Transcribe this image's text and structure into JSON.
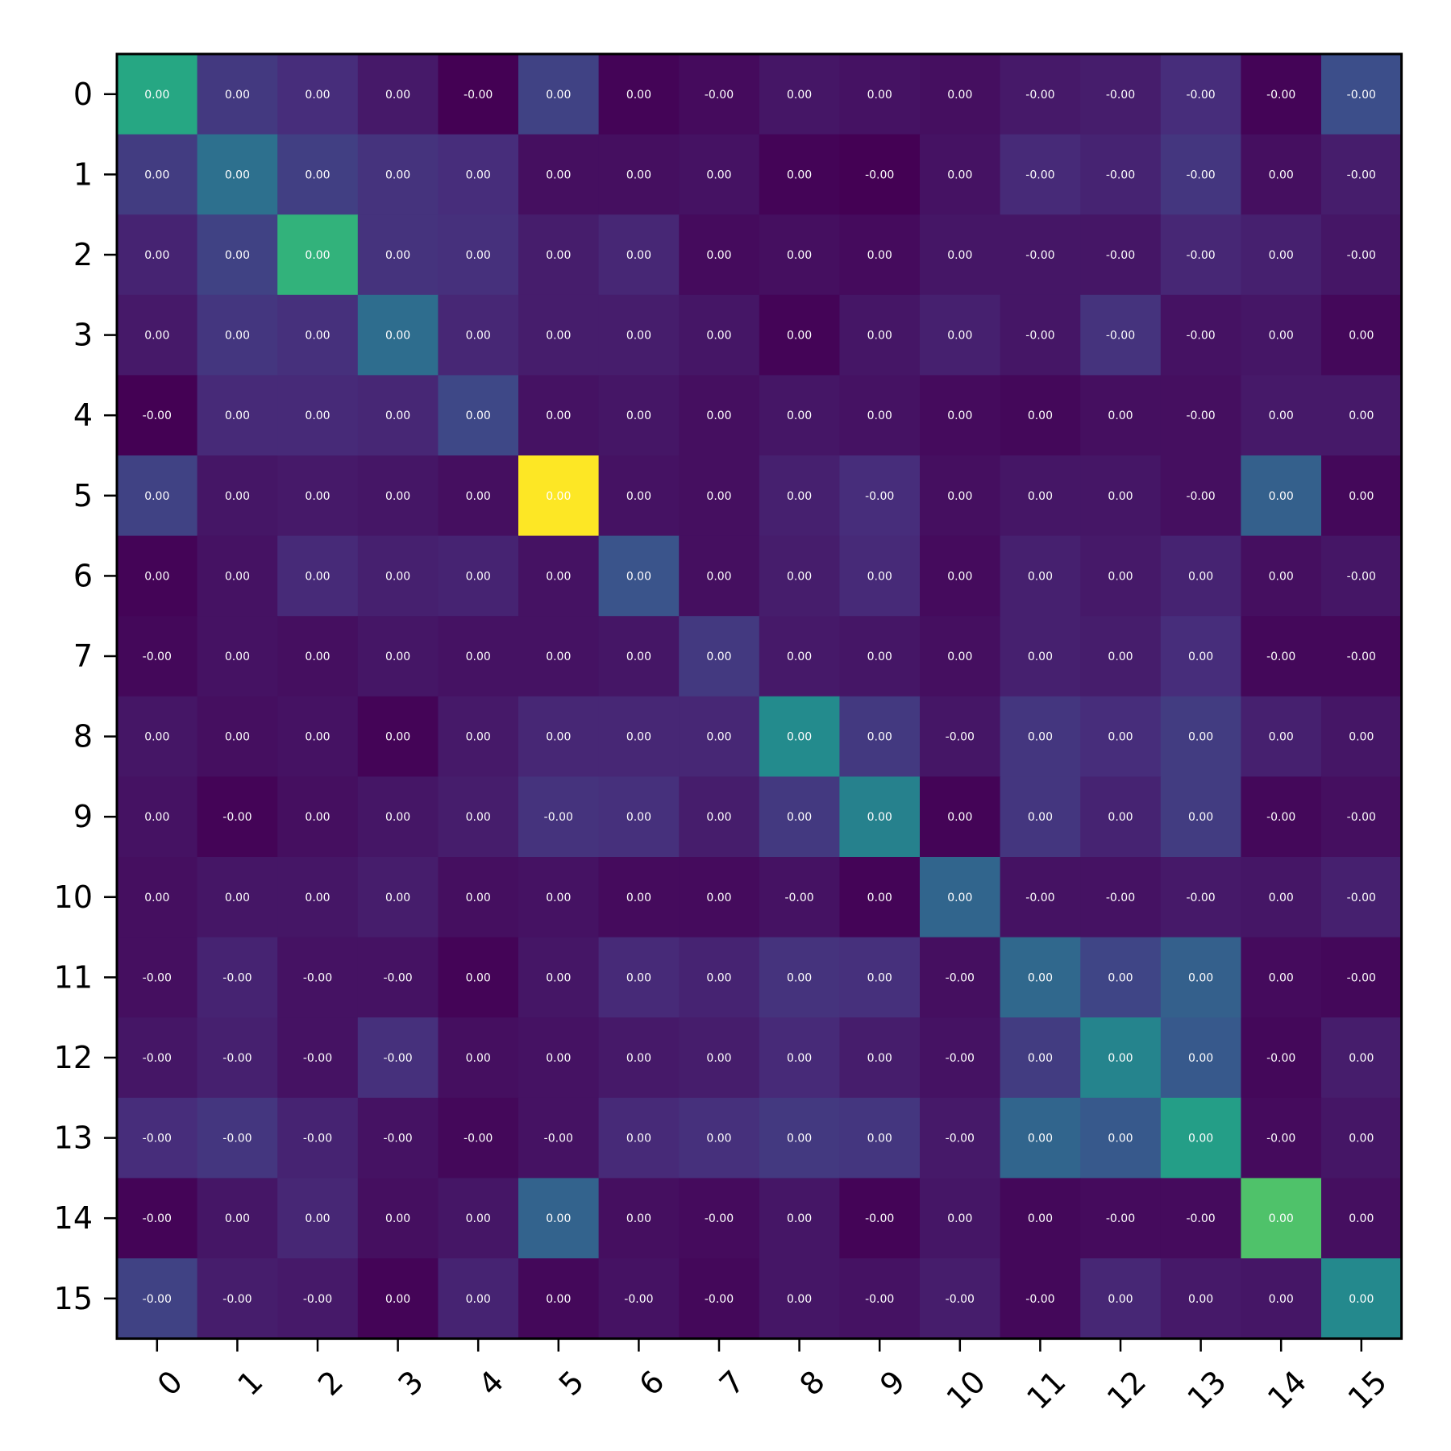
{
  "chart_data": {
    "type": "heatmap",
    "title": "",
    "xlabel": "",
    "ylabel": "",
    "x_categories": [
      "0",
      "1",
      "2",
      "3",
      "4",
      "5",
      "6",
      "7",
      "8",
      "9",
      "10",
      "11",
      "12",
      "13",
      "14",
      "15"
    ],
    "y_categories": [
      "0",
      "1",
      "2",
      "3",
      "4",
      "5",
      "6",
      "7",
      "8",
      "9",
      "10",
      "11",
      "12",
      "13",
      "14",
      "15"
    ],
    "colormap": "viridis",
    "grid": false,
    "legend": "none",
    "color_levels": [
      [
        0.6,
        0.17,
        0.13,
        0.07,
        0.0,
        0.2,
        0.01,
        0.03,
        0.06,
        0.05,
        0.04,
        0.07,
        0.08,
        0.13,
        0.01,
        0.24
      ],
      [
        0.18,
        0.37,
        0.19,
        0.15,
        0.13,
        0.04,
        0.04,
        0.05,
        0.01,
        0.0,
        0.05,
        0.12,
        0.1,
        0.16,
        0.04,
        0.08
      ],
      [
        0.1,
        0.2,
        0.65,
        0.15,
        0.14,
        0.08,
        0.11,
        0.03,
        0.04,
        0.03,
        0.06,
        0.06,
        0.06,
        0.11,
        0.09,
        0.06
      ],
      [
        0.07,
        0.16,
        0.14,
        0.36,
        0.11,
        0.08,
        0.08,
        0.06,
        0.01,
        0.06,
        0.09,
        0.06,
        0.15,
        0.05,
        0.06,
        0.02
      ],
      [
        0.0,
        0.12,
        0.12,
        0.11,
        0.22,
        0.05,
        0.06,
        0.04,
        0.06,
        0.05,
        0.03,
        0.02,
        0.04,
        0.04,
        0.07,
        0.07
      ],
      [
        0.2,
        0.06,
        0.07,
        0.06,
        0.04,
        1.0,
        0.05,
        0.04,
        0.09,
        0.13,
        0.04,
        0.06,
        0.06,
        0.04,
        0.31,
        0.02
      ],
      [
        0.01,
        0.05,
        0.12,
        0.09,
        0.1,
        0.05,
        0.26,
        0.04,
        0.08,
        0.12,
        0.03,
        0.09,
        0.07,
        0.1,
        0.04,
        0.06
      ],
      [
        0.02,
        0.05,
        0.04,
        0.06,
        0.05,
        0.05,
        0.06,
        0.17,
        0.07,
        0.06,
        0.04,
        0.09,
        0.08,
        0.13,
        0.02,
        0.02
      ],
      [
        0.06,
        0.04,
        0.05,
        0.01,
        0.07,
        0.11,
        0.11,
        0.11,
        0.48,
        0.17,
        0.06,
        0.16,
        0.13,
        0.18,
        0.09,
        0.06
      ],
      [
        0.05,
        0.01,
        0.04,
        0.06,
        0.08,
        0.15,
        0.14,
        0.08,
        0.17,
        0.44,
        0.01,
        0.16,
        0.1,
        0.18,
        0.02,
        0.04
      ],
      [
        0.04,
        0.06,
        0.06,
        0.08,
        0.04,
        0.05,
        0.03,
        0.03,
        0.05,
        0.01,
        0.33,
        0.05,
        0.05,
        0.07,
        0.06,
        0.09
      ],
      [
        0.04,
        0.1,
        0.05,
        0.05,
        0.01,
        0.06,
        0.12,
        0.1,
        0.15,
        0.14,
        0.04,
        0.34,
        0.21,
        0.31,
        0.03,
        0.02
      ],
      [
        0.06,
        0.09,
        0.05,
        0.14,
        0.04,
        0.05,
        0.07,
        0.08,
        0.12,
        0.08,
        0.05,
        0.18,
        0.45,
        0.28,
        0.02,
        0.08
      ],
      [
        0.13,
        0.16,
        0.1,
        0.05,
        0.02,
        0.05,
        0.12,
        0.14,
        0.17,
        0.16,
        0.07,
        0.33,
        0.28,
        0.56,
        0.03,
        0.06
      ],
      [
        0.01,
        0.06,
        0.11,
        0.04,
        0.06,
        0.32,
        0.04,
        0.03,
        0.06,
        0.01,
        0.06,
        0.02,
        0.03,
        0.03,
        0.72,
        0.04
      ],
      [
        0.2,
        0.08,
        0.07,
        0.01,
        0.1,
        0.02,
        0.05,
        0.02,
        0.06,
        0.05,
        0.08,
        0.02,
        0.11,
        0.07,
        0.06,
        0.47
      ]
    ],
    "cell_labels": [
      [
        "0.00",
        "0.00",
        "0.00",
        "0.00",
        "-0.00",
        "0.00",
        "0.00",
        "-0.00",
        "0.00",
        "0.00",
        "0.00",
        "-0.00",
        "-0.00",
        "-0.00",
        "-0.00",
        "-0.00"
      ],
      [
        "0.00",
        "0.00",
        "0.00",
        "0.00",
        "0.00",
        "0.00",
        "0.00",
        "0.00",
        "0.00",
        "-0.00",
        "0.00",
        "-0.00",
        "-0.00",
        "-0.00",
        "0.00",
        "-0.00"
      ],
      [
        "0.00",
        "0.00",
        "0.00",
        "0.00",
        "0.00",
        "0.00",
        "0.00",
        "0.00",
        "0.00",
        "0.00",
        "0.00",
        "-0.00",
        "-0.00",
        "-0.00",
        "0.00",
        "-0.00"
      ],
      [
        "0.00",
        "0.00",
        "0.00",
        "0.00",
        "0.00",
        "0.00",
        "0.00",
        "0.00",
        "0.00",
        "0.00",
        "0.00",
        "-0.00",
        "-0.00",
        "-0.00",
        "0.00",
        "0.00"
      ],
      [
        "-0.00",
        "0.00",
        "0.00",
        "0.00",
        "0.00",
        "0.00",
        "0.00",
        "0.00",
        "0.00",
        "0.00",
        "0.00",
        "0.00",
        "0.00",
        "-0.00",
        "0.00",
        "0.00"
      ],
      [
        "0.00",
        "0.00",
        "0.00",
        "0.00",
        "0.00",
        "0.00",
        "0.00",
        "0.00",
        "0.00",
        "-0.00",
        "0.00",
        "0.00",
        "0.00",
        "-0.00",
        "0.00",
        "0.00"
      ],
      [
        "0.00",
        "0.00",
        "0.00",
        "0.00",
        "0.00",
        "0.00",
        "0.00",
        "0.00",
        "0.00",
        "0.00",
        "0.00",
        "0.00",
        "0.00",
        "0.00",
        "0.00",
        "-0.00"
      ],
      [
        "-0.00",
        "0.00",
        "0.00",
        "0.00",
        "0.00",
        "0.00",
        "0.00",
        "0.00",
        "0.00",
        "0.00",
        "0.00",
        "0.00",
        "0.00",
        "0.00",
        "-0.00",
        "-0.00"
      ],
      [
        "0.00",
        "0.00",
        "0.00",
        "0.00",
        "0.00",
        "0.00",
        "0.00",
        "0.00",
        "0.00",
        "0.00",
        "-0.00",
        "0.00",
        "0.00",
        "0.00",
        "0.00",
        "0.00"
      ],
      [
        "0.00",
        "-0.00",
        "0.00",
        "0.00",
        "0.00",
        "-0.00",
        "0.00",
        "0.00",
        "0.00",
        "0.00",
        "0.00",
        "0.00",
        "0.00",
        "0.00",
        "-0.00",
        "-0.00"
      ],
      [
        "0.00",
        "0.00",
        "0.00",
        "0.00",
        "0.00",
        "0.00",
        "0.00",
        "0.00",
        "-0.00",
        "0.00",
        "0.00",
        "-0.00",
        "-0.00",
        "-0.00",
        "0.00",
        "-0.00"
      ],
      [
        "-0.00",
        "-0.00",
        "-0.00",
        "-0.00",
        "0.00",
        "0.00",
        "0.00",
        "0.00",
        "0.00",
        "0.00",
        "-0.00",
        "0.00",
        "0.00",
        "0.00",
        "0.00",
        "-0.00"
      ],
      [
        "-0.00",
        "-0.00",
        "-0.00",
        "-0.00",
        "0.00",
        "0.00",
        "0.00",
        "0.00",
        "0.00",
        "0.00",
        "-0.00",
        "0.00",
        "0.00",
        "0.00",
        "-0.00",
        "0.00"
      ],
      [
        "-0.00",
        "-0.00",
        "-0.00",
        "-0.00",
        "-0.00",
        "-0.00",
        "0.00",
        "0.00",
        "0.00",
        "0.00",
        "-0.00",
        "0.00",
        "0.00",
        "0.00",
        "-0.00",
        "0.00"
      ],
      [
        "-0.00",
        "0.00",
        "0.00",
        "0.00",
        "0.00",
        "0.00",
        "0.00",
        "-0.00",
        "0.00",
        "-0.00",
        "0.00",
        "0.00",
        "-0.00",
        "-0.00",
        "0.00",
        "0.00"
      ],
      [
        "-0.00",
        "-0.00",
        "-0.00",
        "0.00",
        "0.00",
        "0.00",
        "-0.00",
        "-0.00",
        "0.00",
        "-0.00",
        "-0.00",
        "-0.00",
        "0.00",
        "0.00",
        "0.00",
        "0.00"
      ]
    ]
  }
}
